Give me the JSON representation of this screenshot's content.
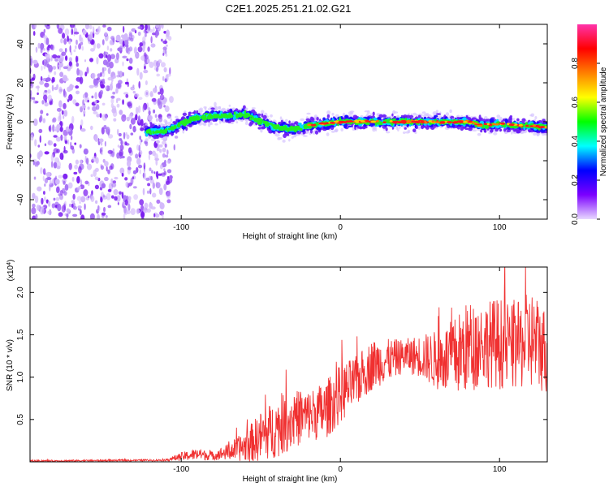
{
  "title": "C2E1.2025.251.21.02.G21",
  "chart_data": [
    {
      "type": "heatmap",
      "name": "spectrogram",
      "xlabel": "Height of straight line (km)",
      "ylabel": "Frequency (Hz)",
      "xlim": [
        -195,
        130
      ],
      "ylim": [
        -50,
        50
      ],
      "xticks": [
        -100,
        0,
        100
      ],
      "xtick_labels": [
        "-100",
        "0",
        "100"
      ],
      "yticks": [
        40,
        20,
        0,
        -20,
        -40
      ],
      "ytick_labels": [
        "40",
        "20",
        "0",
        "-20",
        "-40"
      ],
      "noise_region_x": [
        -195,
        -107
      ],
      "signal_region_x": [
        -122,
        130
      ],
      "ridge": {
        "x": [
          -120,
          -110,
          -100,
          -90,
          -80,
          -70,
          -60,
          -50,
          -40,
          -30,
          -20,
          -10,
          0,
          10,
          20,
          30,
          40,
          50,
          60,
          70,
          80,
          90,
          100,
          110,
          120,
          130
        ],
        "y": [
          -5,
          -5,
          -1,
          2,
          3,
          3,
          4,
          0,
          -3,
          -4,
          -2,
          -1,
          0,
          0,
          0,
          0,
          0,
          0,
          0,
          0,
          0,
          -2,
          -1,
          -2,
          -2,
          -3
        ]
      },
      "colorbar": {
        "label": "Normalized spectral amplitude",
        "range": [
          0,
          1
        ],
        "ticks": [
          0.0,
          0.2,
          0.4,
          0.6,
          0.8
        ],
        "tick_labels": [
          "0.0",
          "0.2",
          "0.4",
          "0.6",
          "0.8"
        ],
        "colors": [
          "#e8d8ff",
          "#7b00ff",
          "#0000ff",
          "#00ffff",
          "#00ff00",
          "#ffff00",
          "#ff8000",
          "#ff0000",
          "#ff33aa"
        ]
      }
    },
    {
      "type": "line",
      "name": "snr",
      "xlabel": "Height of straight line (km)",
      "ylabel": "SNR (10 * v/v)",
      "multiplier_label": "(x10",
      "multiplier_exp": "4",
      "multiplier_close": ")",
      "xlim": [
        -195,
        130
      ],
      "ylim": [
        0,
        2.3
      ],
      "xticks": [
        -100,
        0,
        100
      ],
      "xtick_labels": [
        "-100",
        "0",
        "100"
      ],
      "yticks": [
        0.5,
        1.0,
        1.5,
        2.0
      ],
      "ytick_labels": [
        "0.5",
        "1.0",
        "1.5",
        "2.0"
      ],
      "color": "#f03030",
      "envelope": {
        "x": [
          -195,
          -110,
          -100,
          -90,
          -80,
          -70,
          -60,
          -50,
          -40,
          -30,
          -20,
          -10,
          0,
          10,
          20,
          30,
          40,
          50,
          60,
          70,
          80,
          90,
          100,
          110,
          120,
          130
        ],
        "base": [
          0.01,
          0.02,
          0.06,
          0.09,
          0.07,
          0.12,
          0.18,
          0.3,
          0.4,
          0.5,
          0.55,
          0.6,
          0.8,
          0.95,
          1.15,
          1.2,
          1.25,
          1.25,
          1.2,
          1.22,
          1.35,
          1.4,
          1.4,
          1.35,
          1.45,
          1.3
        ],
        "amplitude": [
          0.01,
          0.01,
          0.05,
          0.07,
          0.05,
          0.1,
          0.18,
          0.3,
          0.35,
          0.35,
          0.3,
          0.35,
          0.35,
          0.3,
          0.3,
          0.25,
          0.2,
          0.25,
          0.35,
          0.45,
          0.55,
          0.5,
          0.55,
          0.5,
          0.6,
          0.5
        ]
      }
    }
  ]
}
